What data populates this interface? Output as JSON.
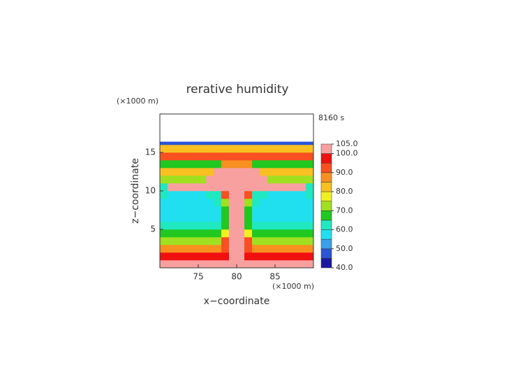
{
  "chart_data": {
    "type": "contour",
    "title": "rerative humidity",
    "time_label": "8160 s",
    "xlabel": "x−coordinate",
    "ylabel": "z−coordinate",
    "xunit": "(×1000 m)",
    "yunit": "(×1000 m)",
    "xlim": [
      70,
      90
    ],
    "ylim": [
      0,
      20
    ],
    "xticks": [
      75,
      80,
      85
    ],
    "yticks": [
      5,
      10,
      15
    ],
    "x_edges": [
      70,
      71,
      72,
      73,
      74,
      75,
      76,
      77,
      78,
      79,
      80,
      81,
      82,
      83,
      84,
      85,
      86,
      87,
      88,
      89,
      90
    ],
    "y_edges": [
      0,
      1,
      2,
      3,
      4,
      5,
      6,
      7,
      8,
      9,
      10,
      11,
      12,
      13,
      14,
      15,
      16,
      16.4
    ],
    "z": [
      [
        100,
        100,
        100,
        100,
        100,
        100,
        100,
        100,
        100,
        100,
        100,
        100,
        100,
        100,
        100,
        100,
        100,
        100,
        100,
        100
      ],
      [
        95,
        95,
        95,
        95,
        95,
        95,
        95,
        95,
        95,
        102,
        102,
        95,
        95,
        95,
        95,
        95,
        95,
        95,
        95,
        95
      ],
      [
        88,
        88,
        88,
        88,
        88,
        88,
        88,
        88,
        92,
        102,
        102,
        92,
        88,
        88,
        88,
        88,
        88,
        88,
        88,
        88
      ],
      [
        74,
        74,
        74,
        74,
        74,
        74,
        74,
        74,
        90,
        102,
        102,
        90,
        74,
        74,
        74,
        74,
        74,
        74,
        74,
        74
      ],
      [
        66,
        66,
        66,
        66,
        66,
        66,
        66,
        66,
        75,
        102,
        102,
        75,
        66,
        66,
        66,
        66,
        66,
        66,
        66,
        66
      ],
      [
        62,
        62,
        62,
        62,
        62,
        62,
        62,
        62,
        68,
        102,
        102,
        68,
        62,
        62,
        62,
        62,
        62,
        62,
        62,
        62
      ],
      [
        58,
        58,
        58,
        58,
        58,
        58,
        58,
        58,
        66,
        102,
        102,
        66,
        58,
        58,
        58,
        58,
        58,
        58,
        58,
        58
      ],
      [
        57,
        57,
        57,
        57,
        57,
        57,
        57,
        58,
        66,
        102,
        102,
        66,
        58,
        57,
        57,
        57,
        57,
        57,
        57,
        57
      ],
      [
        58,
        58,
        58,
        58,
        58,
        58,
        58,
        60,
        70,
        102,
        102,
        70,
        60,
        58,
        58,
        58,
        58,
        58,
        58,
        58
      ],
      [
        60,
        58,
        58,
        58,
        58,
        58,
        60,
        64,
        90,
        102,
        102,
        90,
        64,
        60,
        58,
        58,
        58,
        58,
        58,
        60
      ],
      [
        60,
        102,
        102,
        102,
        102,
        102,
        102,
        102,
        102,
        102,
        102,
        102,
        102,
        102,
        102,
        102,
        102,
        102,
        102,
        60
      ],
      [
        72,
        72,
        72,
        72,
        72,
        72,
        102,
        102,
        102,
        102,
        102,
        102,
        102,
        102,
        72,
        72,
        72,
        72,
        72,
        72
      ],
      [
        82,
        82,
        82,
        82,
        82,
        82,
        82,
        102,
        102,
        102,
        102,
        102,
        102,
        82,
        82,
        82,
        82,
        82,
        82,
        82
      ],
      [
        68,
        68,
        68,
        68,
        68,
        68,
        68,
        68,
        85,
        85,
        85,
        85,
        68,
        68,
        68,
        68,
        68,
        68,
        68,
        68
      ],
      [
        92,
        92,
        92,
        92,
        92,
        92,
        92,
        92,
        92,
        92,
        92,
        92,
        92,
        92,
        92,
        92,
        92,
        92,
        92,
        92
      ],
      [
        84,
        84,
        84,
        84,
        84,
        84,
        84,
        84,
        84,
        84,
        84,
        84,
        84,
        84,
        84,
        84,
        84,
        84,
        84,
        84
      ],
      [
        45,
        45,
        45,
        45,
        45,
        45,
        45,
        45,
        45,
        45,
        45,
        45,
        45,
        45,
        45,
        45,
        45,
        45,
        45,
        45
      ]
    ],
    "levels": [
      40,
      45,
      50,
      55,
      60,
      65,
      70,
      75,
      80,
      85,
      90,
      95,
      100,
      105
    ],
    "colors": [
      "#1a1aa0",
      "#2a55d8",
      "#3aa0e8",
      "#20e0f0",
      "#20e8c0",
      "#20c820",
      "#a0e020",
      "#f0f020",
      "#f8c020",
      "#f89020",
      "#f85020",
      "#f01010",
      "#f8a0a0"
    ],
    "cbar_ticks": [
      {
        "value": 105,
        "label": "105.0"
      },
      {
        "value": 100,
        "label": "100.0"
      },
      {
        "value": 90,
        "label": "90.0"
      },
      {
        "value": 80,
        "label": "80.0"
      },
      {
        "value": 70,
        "label": "70.0"
      },
      {
        "value": 60,
        "label": "60.0"
      },
      {
        "value": 50,
        "label": "50.0"
      },
      {
        "value": 40,
        "label": "40.0"
      }
    ]
  }
}
